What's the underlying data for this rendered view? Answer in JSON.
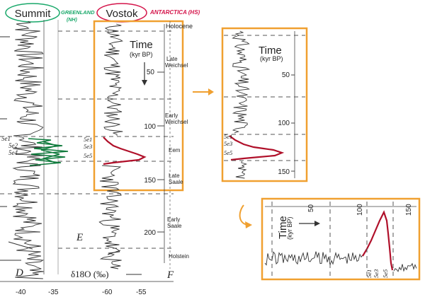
{
  "labels": {
    "summit": "Summit",
    "summit_note": "GREENLAND",
    "summit_note2": "(NH)",
    "vostok": "Vostok",
    "vostok_note": "ANTARCTICA (HS)",
    "delta_axis": "δ18O (‰)",
    "panel_d": "D",
    "panel_e": "E",
    "panel_f": "F"
  },
  "left_ticks": [
    "-40",
    "-35",
    "-60",
    "-55"
  ],
  "stage_labels": [
    "5e1",
    "5e2",
    "5e4"
  ],
  "vostok_stage_labels": [
    "5e1",
    "5e3",
    "5e5"
  ],
  "periods": [
    "Holocene",
    "Late",
    "Weichsel",
    "Early",
    "Weichsel",
    "Eem",
    "Late",
    "Saale",
    "Early",
    "Saale",
    "Holstein"
  ],
  "main_panel": {
    "time_label": "Time",
    "time_unit": "(kyr BP)",
    "ticks": [
      "50",
      "100",
      "150",
      "200"
    ]
  },
  "zoom_panel": {
    "time_label": "Time",
    "time_unit": "(kyr BP)",
    "ticks": [
      "50",
      "100",
      "150"
    ],
    "stage_labels": [
      "5e1",
      "5e3",
      "5e5"
    ]
  },
  "rotated_panel": {
    "time_label": "Time",
    "time_unit": "(kyr BP)",
    "ticks": [
      "50",
      "100",
      "150"
    ],
    "stage_labels": [
      "5e1",
      "5e3",
      "5e5"
    ]
  },
  "colors": {
    "highlight_box": "#f0a030",
    "summit_circle": "#19a86a",
    "vostok_circle": "#d4144a",
    "eem_trace": "#b0102a",
    "green_trace": "#0f7a3c"
  },
  "icons": [
    "right-arrow-icon",
    "down-arrow-icon",
    "hook-arrow-icon"
  ]
}
